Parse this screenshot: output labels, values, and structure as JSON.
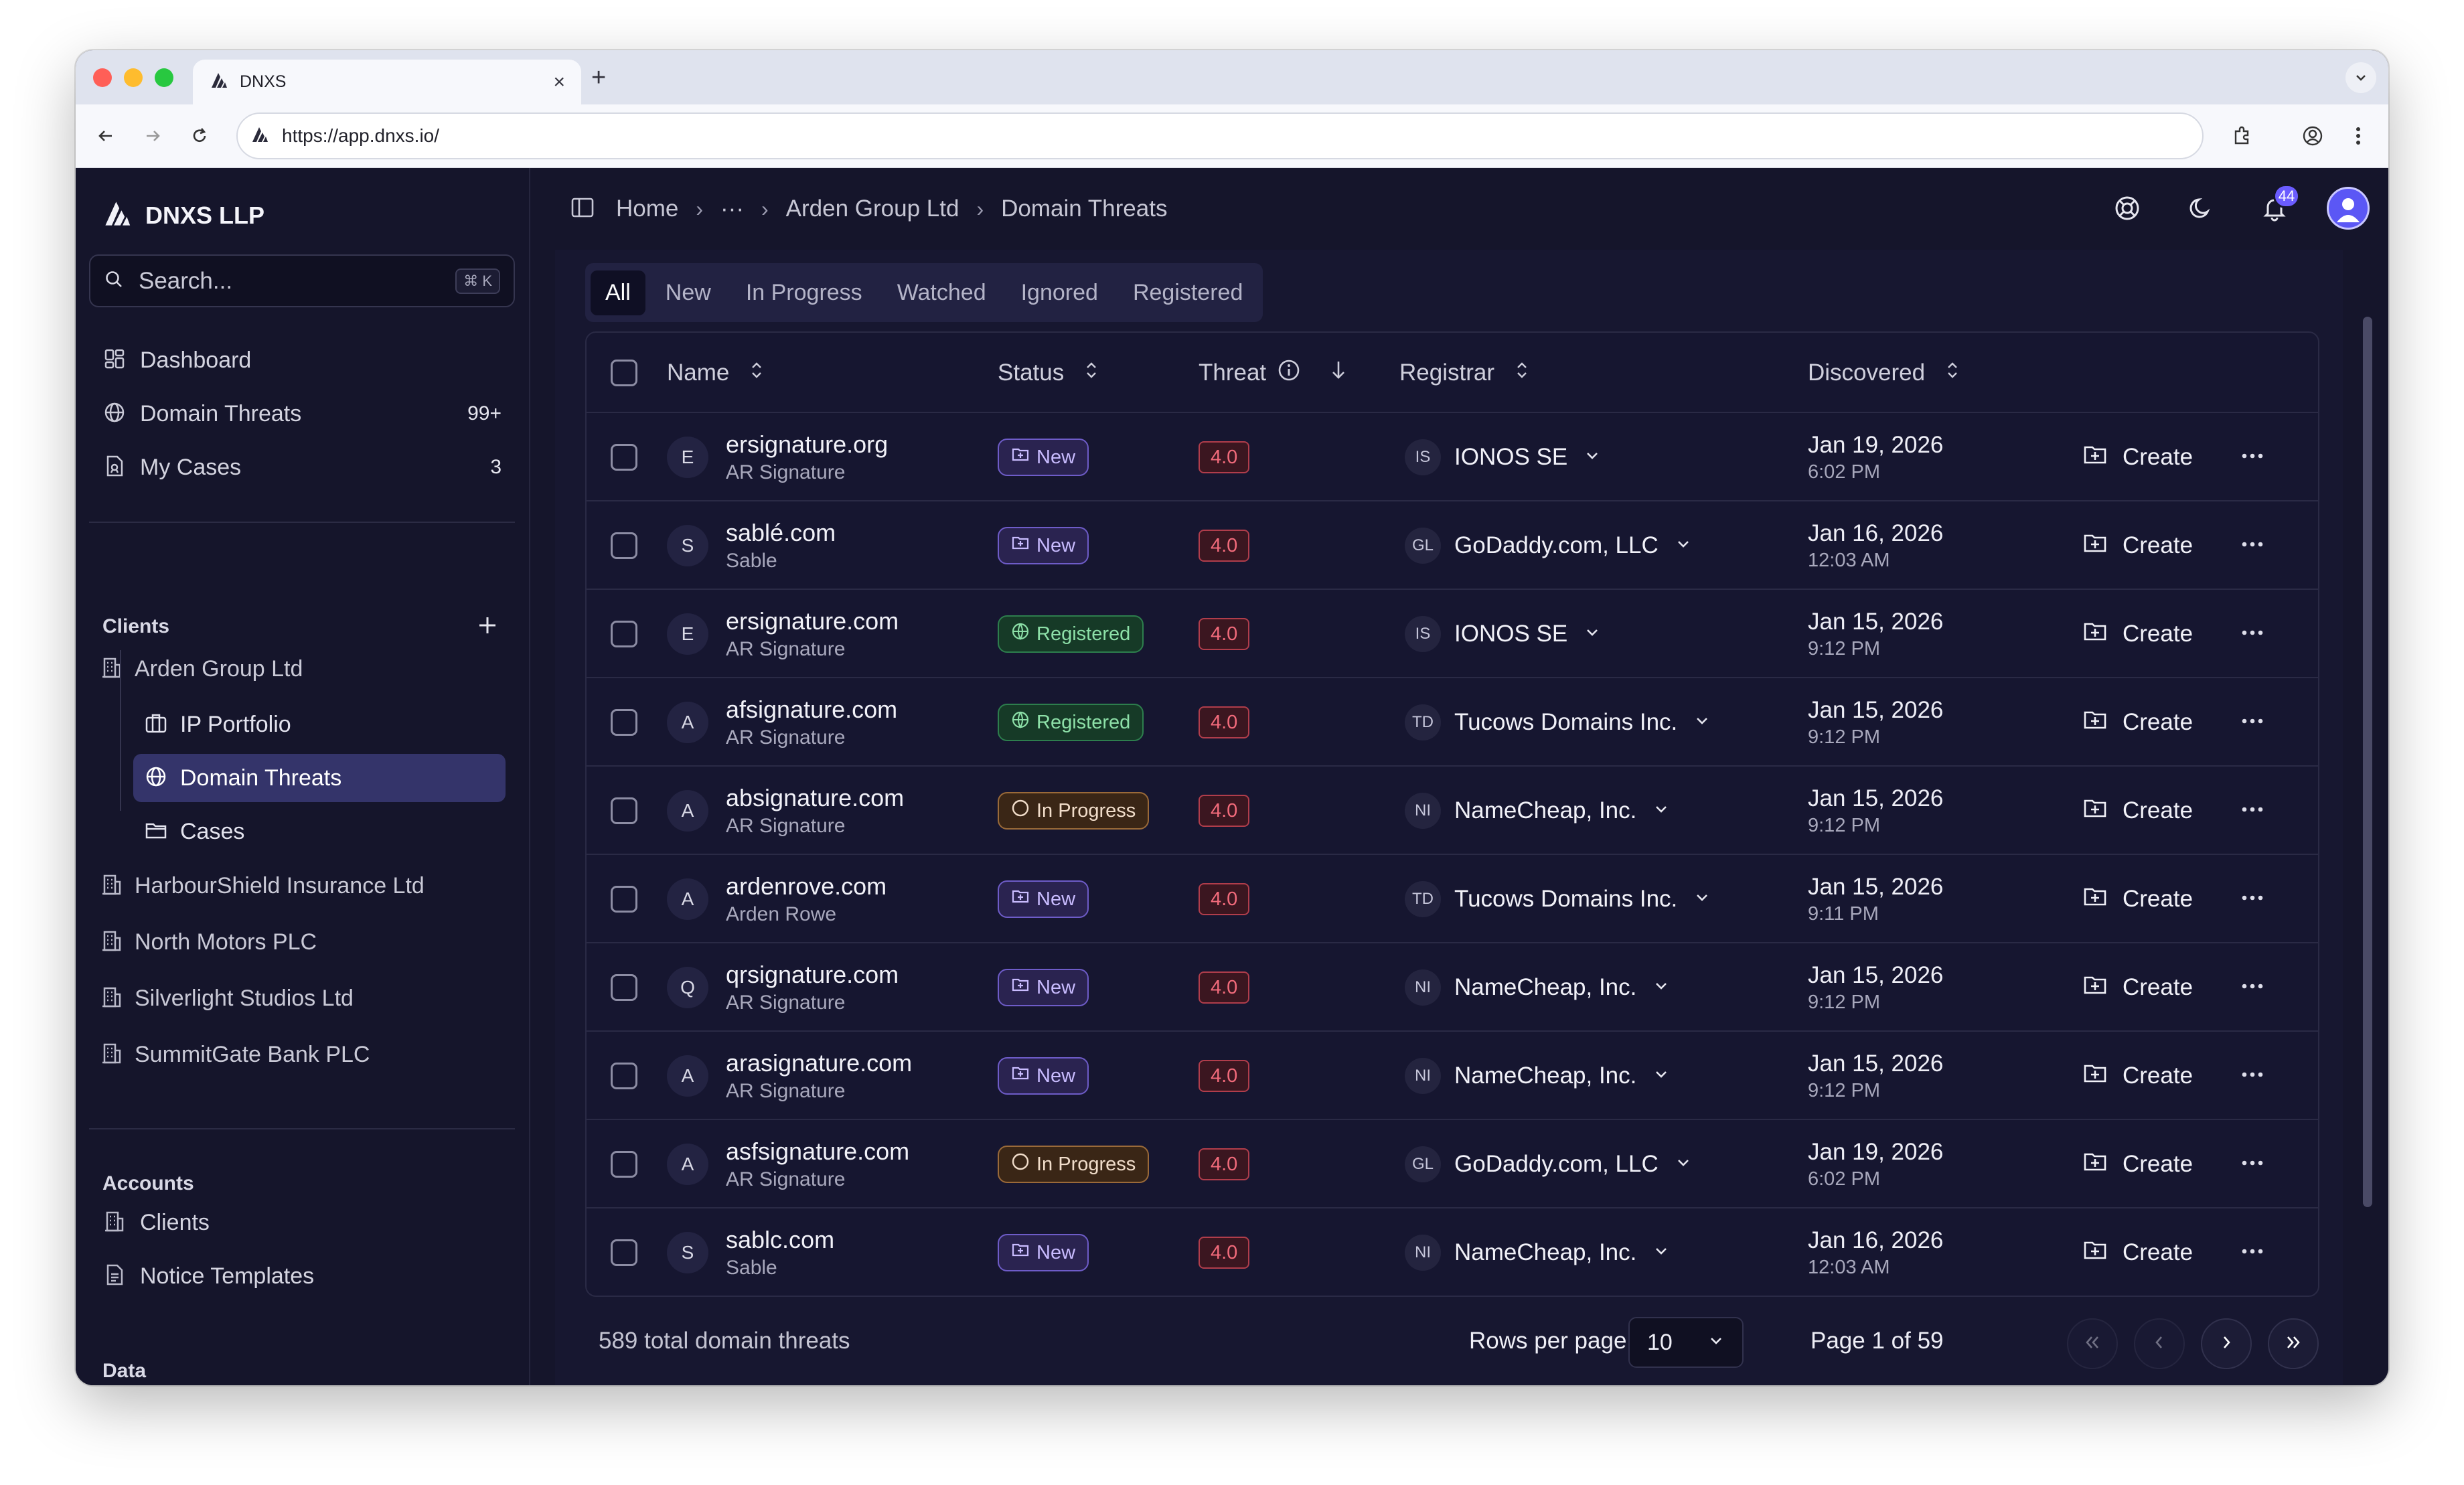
{
  "browser": {
    "tab_title": "DNXS",
    "url": "https://app.dnxs.io/"
  },
  "sidebar": {
    "brand": "DNXS LLP",
    "search_placeholder": "Search...",
    "search_shortcut": "⌘ K",
    "nav": [
      {
        "label": "Dashboard",
        "icon": "dashboard-icon",
        "count": ""
      },
      {
        "label": "Domain Threats",
        "icon": "globe-icon",
        "count": "99+"
      },
      {
        "label": "My Cases",
        "icon": "case-file-icon",
        "count": "3"
      }
    ],
    "clients_title": "Clients",
    "clients": [
      {
        "label": "Arden Group Ltd"
      },
      {
        "label": "HarbourShield Insurance Ltd"
      },
      {
        "label": "North Motors PLC"
      },
      {
        "label": "Silverlight Studios Ltd"
      },
      {
        "label": "SummitGate Bank PLC"
      }
    ],
    "client_subitems": [
      {
        "label": "IP Portfolio",
        "icon": "briefcase-icon"
      },
      {
        "label": "Domain Threats",
        "icon": "globe-icon"
      },
      {
        "label": "Cases",
        "icon": "folder-icon"
      }
    ],
    "accounts_title": "Accounts",
    "accounts": [
      {
        "label": "Clients"
      },
      {
        "label": "Notice Templates"
      }
    ],
    "data_title": "Data"
  },
  "header": {
    "breadcrumbs": [
      "Home",
      "···",
      "Arden Group Ltd",
      "Domain Threats"
    ],
    "notification_count": "44"
  },
  "filters": [
    "All",
    "New",
    "In Progress",
    "Watched",
    "Ignored",
    "Registered"
  ],
  "table": {
    "columns": {
      "name": "Name",
      "status": "Status",
      "threat": "Threat",
      "registrar": "Registrar",
      "discovered": "Discovered"
    },
    "create_label": "Create",
    "rows": [
      {
        "letter": "E",
        "domain": "ersignature.org",
        "brand": "AR Signature",
        "status": "New",
        "threat": "4.0",
        "reg_abbr": "IS",
        "registrar": "IONOS SE",
        "date": "Jan 19, 2026",
        "time": "6:02 PM"
      },
      {
        "letter": "S",
        "domain": "sablé.com",
        "brand": "Sable",
        "status": "New",
        "threat": "4.0",
        "reg_abbr": "GL",
        "registrar": "GoDaddy.com, LLC",
        "date": "Jan 16, 2026",
        "time": "12:03 AM"
      },
      {
        "letter": "E",
        "domain": "ersignature.com",
        "brand": "AR Signature",
        "status": "Registered",
        "threat": "4.0",
        "reg_abbr": "IS",
        "registrar": "IONOS SE",
        "date": "Jan 15, 2026",
        "time": "9:12 PM"
      },
      {
        "letter": "A",
        "domain": "afsignature.com",
        "brand": "AR Signature",
        "status": "Registered",
        "threat": "4.0",
        "reg_abbr": "TD",
        "registrar": "Tucows Domains Inc.",
        "date": "Jan 15, 2026",
        "time": "9:12 PM"
      },
      {
        "letter": "A",
        "domain": "absignature.com",
        "brand": "AR Signature",
        "status": "In Progress",
        "threat": "4.0",
        "reg_abbr": "NI",
        "registrar": "NameCheap, Inc.",
        "date": "Jan 15, 2026",
        "time": "9:12 PM"
      },
      {
        "letter": "A",
        "domain": "ardenrove.com",
        "brand": "Arden Rowe",
        "status": "New",
        "threat": "4.0",
        "reg_abbr": "TD",
        "registrar": "Tucows Domains Inc.",
        "date": "Jan 15, 2026",
        "time": "9:11 PM"
      },
      {
        "letter": "Q",
        "domain": "qrsignature.com",
        "brand": "AR Signature",
        "status": "New",
        "threat": "4.0",
        "reg_abbr": "NI",
        "registrar": "NameCheap, Inc.",
        "date": "Jan 15, 2026",
        "time": "9:12 PM"
      },
      {
        "letter": "A",
        "domain": "arasignature.com",
        "brand": "AR Signature",
        "status": "New",
        "threat": "4.0",
        "reg_abbr": "NI",
        "registrar": "NameCheap, Inc.",
        "date": "Jan 15, 2026",
        "time": "9:12 PM"
      },
      {
        "letter": "A",
        "domain": "asfsignature.com",
        "brand": "AR Signature",
        "status": "In Progress",
        "threat": "4.0",
        "reg_abbr": "GL",
        "registrar": "GoDaddy.com, LLC",
        "date": "Jan 19, 2026",
        "time": "6:02 PM"
      },
      {
        "letter": "S",
        "domain": "sablc.com",
        "brand": "Sable",
        "status": "New",
        "threat": "4.0",
        "reg_abbr": "NI",
        "registrar": "NameCheap, Inc.",
        "date": "Jan 16, 2026",
        "time": "12:03 AM"
      }
    ]
  },
  "footer": {
    "total": "589 total domain threats",
    "rows_per_page_label": "Rows per page",
    "rows_per_page_value": "10",
    "page_label": "Page 1 of 59"
  },
  "colors": {
    "accent": "#6b5cff",
    "background": "#15152b",
    "threat": "#f26b7b",
    "registered": "#8de0a8",
    "new": "#c9bcff"
  }
}
